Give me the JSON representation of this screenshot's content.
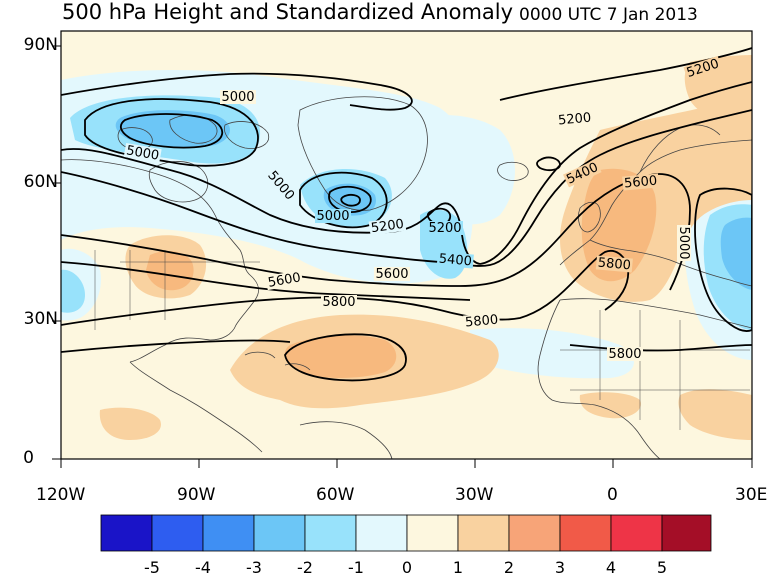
{
  "title": {
    "main": "500 hPa Height and Standardized Anomaly",
    "time": "0000 UTC 7 Jan 2013"
  },
  "latitude_labels": [
    "90N",
    "60N",
    "30N",
    "0"
  ],
  "longitude_labels": [
    "120W",
    "90W",
    "60W",
    "30W",
    "0",
    "30E"
  ],
  "contour_labels": [
    "5000",
    "5000",
    "5000",
    "5000",
    "5200",
    "5200",
    "5200",
    "5200",
    "5400",
    "5400",
    "5600",
    "5600",
    "5600",
    "5800",
    "5800",
    "5800",
    "5800",
    "5000"
  ],
  "colorbar": {
    "labels": [
      "-5",
      "-4",
      "-3",
      "-2",
      "-1",
      "0",
      "1",
      "2",
      "3",
      "4",
      "5"
    ],
    "colors": [
      "#1a14c8",
      "#2e5df0",
      "#3f8ff3",
      "#6cc6f6",
      "#98e2fb",
      "#e3f8fd",
      "#fdf7df",
      "#f9d2a0",
      "#f7a478",
      "#f15a48",
      "#ee3447",
      "#a40e27"
    ]
  },
  "map_colors": {
    "ocean_bg": "#fdf7df",
    "neg_light": "#e3f8fd",
    "neg_mid": "#98e2fb",
    "neg_strong": "#6cc6f6",
    "pos_light": "#f9d2a0",
    "pos_mid": "#f7b97e"
  }
}
